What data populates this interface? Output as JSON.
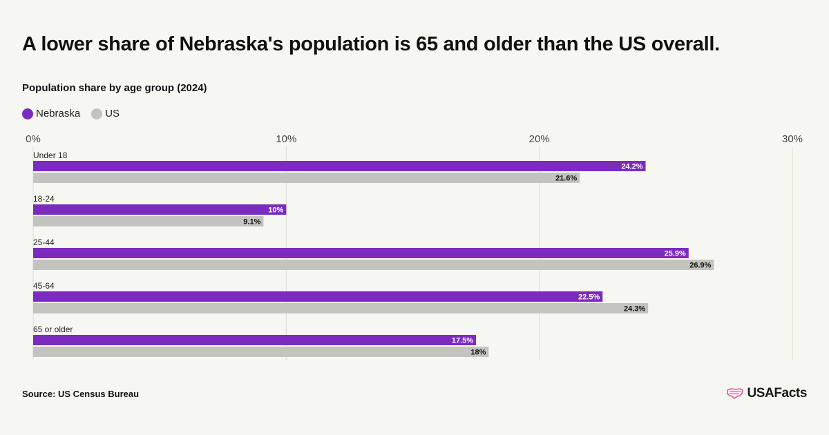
{
  "header": {
    "title": "A lower share of Nebraska's population is 65 and older than the US overall.",
    "subtitle": "Population share by age group (2024)"
  },
  "footer": {
    "source": "Source: US Census Bureau",
    "logo_text": "USAFacts",
    "logo_icon": "us-flag-map-icon"
  },
  "colors": {
    "nebraska": "#7b2cbf",
    "us": "#c4c4be",
    "grid": "#dcdcd6",
    "logo_accent": "#e0559a"
  },
  "chart_data": {
    "type": "bar",
    "orientation": "horizontal",
    "title": "A lower share of Nebraska's population is 65 and older than the US overall.",
    "subtitle": "Population share by age group (2024)",
    "categories": [
      "Under 18",
      "18-24",
      "25-44",
      "45-64",
      "65 or older"
    ],
    "series": [
      {
        "name": "Nebraska",
        "color": "#7b2cbf",
        "values": [
          24.2,
          10,
          25.9,
          22.5,
          17.5
        ],
        "labels": [
          "24.2%",
          "10%",
          "25.9%",
          "22.5%",
          "17.5%"
        ]
      },
      {
        "name": "US",
        "color": "#c4c4be",
        "values": [
          21.6,
          9.1,
          26.9,
          24.3,
          18
        ],
        "labels": [
          "21.6%",
          "9.1%",
          "26.9%",
          "24.3%",
          "18%"
        ]
      }
    ],
    "xlim": [
      0,
      30
    ],
    "ticks": [
      0,
      10,
      20,
      30
    ],
    "tick_labels": [
      "0%",
      "10%",
      "20%",
      "30%"
    ],
    "axis_position": "top",
    "grid": true,
    "legend_position": "top-left"
  }
}
